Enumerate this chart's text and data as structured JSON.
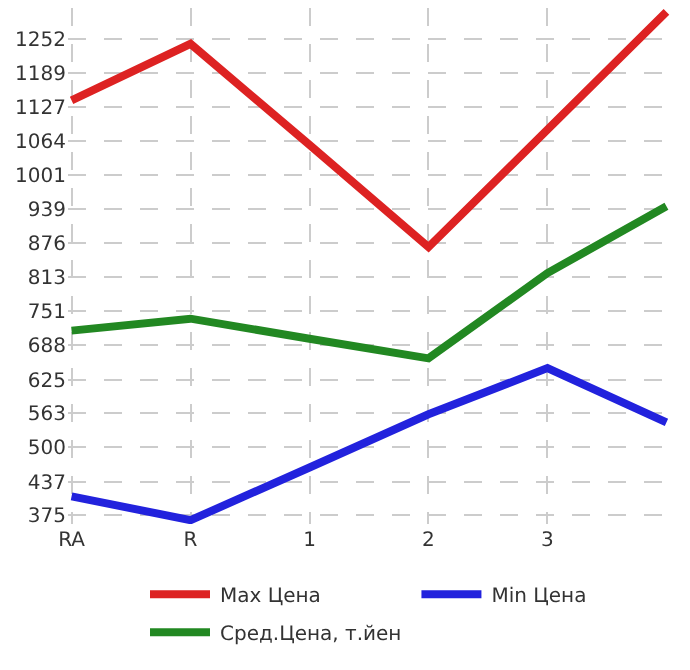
{
  "chart_data": {
    "type": "line",
    "categories": [
      "RA",
      "R",
      "1",
      "2",
      "3",
      null
    ],
    "series": [
      {
        "name": "Max Цена",
        "color": "#dd2222",
        "values": [
          1139,
          1243,
          1057,
          869,
          1085,
          1302
        ]
      },
      {
        "name": "Min Цена",
        "color": "#2222dd",
        "values": [
          410,
          366,
          463,
          561,
          646,
          546
        ]
      },
      {
        "name": "Сред.Цена, т.йен",
        "color": "#228822",
        "values": [
          715,
          737,
          700,
          664,
          821,
          944
        ]
      }
    ],
    "ylim": [
      359,
      1309
    ],
    "yticks": [
      375,
      437,
      500,
      563,
      625,
      688,
      751,
      813,
      876,
      939,
      1001,
      1064,
      1127,
      1189,
      1252
    ],
    "grid": true,
    "legend": "bottom",
    "marker": "none",
    "line_style": "solid"
  }
}
